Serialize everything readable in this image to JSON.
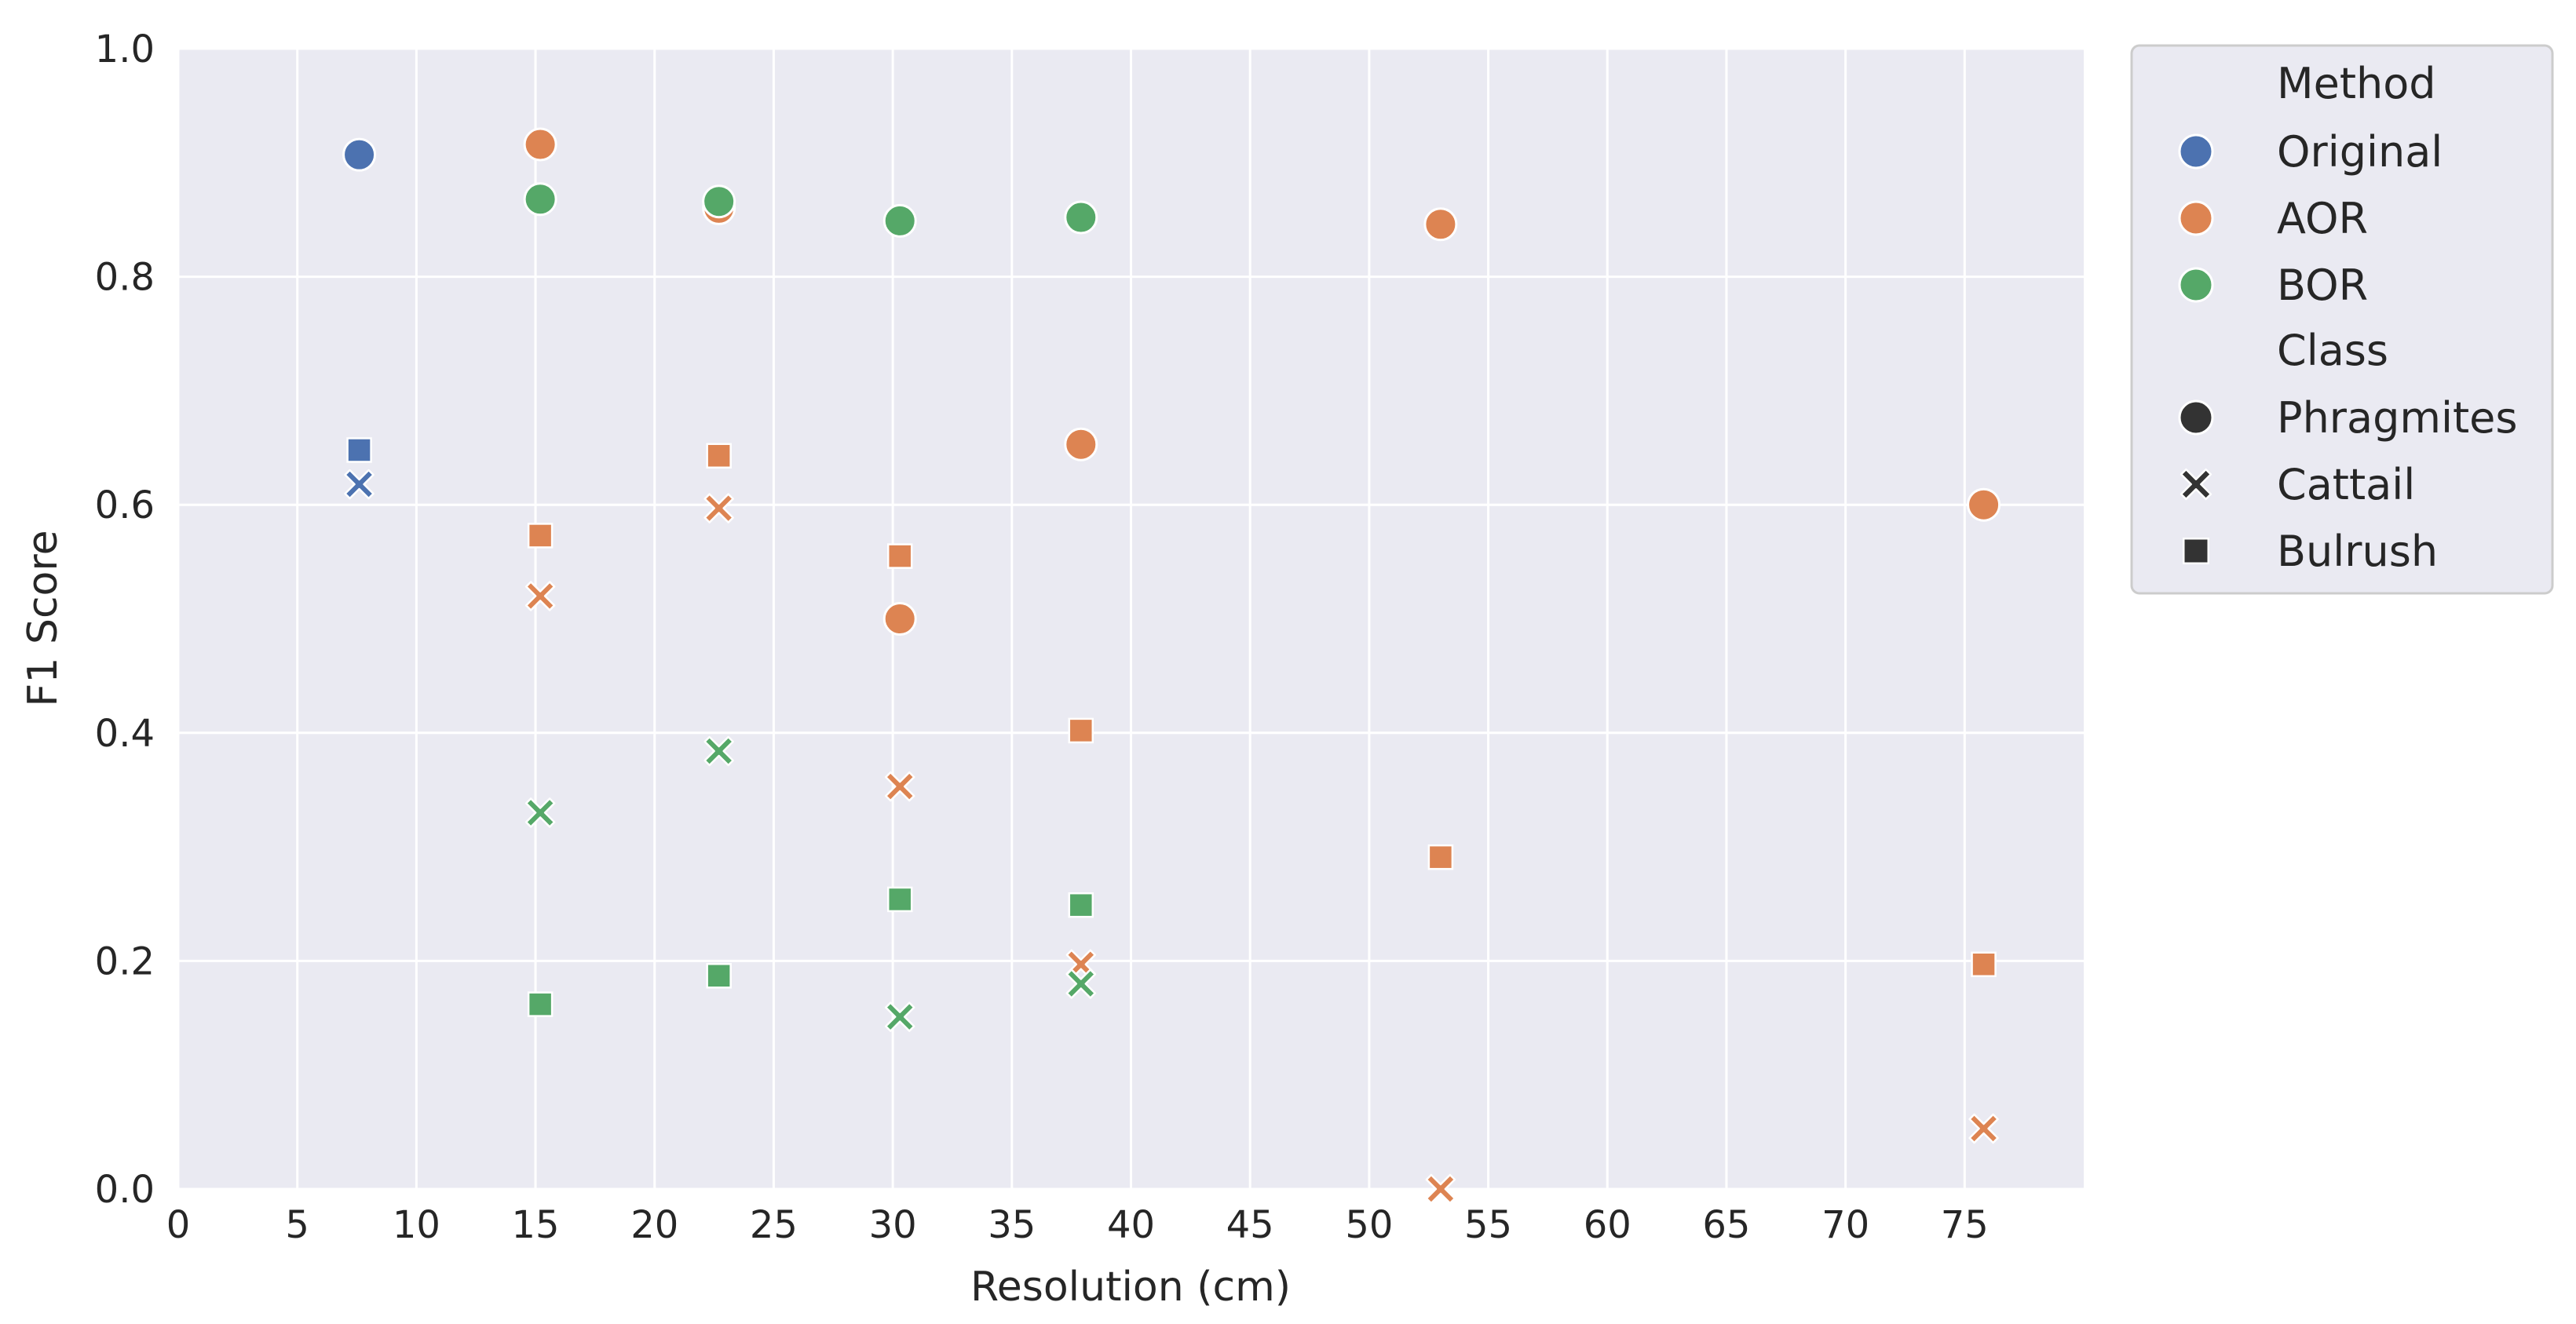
{
  "chart_data": {
    "type": "scatter",
    "xlabel": "Resolution (cm)",
    "ylabel": "F1 Score",
    "xlim": [
      0,
      80
    ],
    "ylim": [
      0.0,
      1.0
    ],
    "x_ticks": [
      0,
      5,
      10,
      15,
      20,
      25,
      30,
      35,
      40,
      45,
      50,
      55,
      60,
      65,
      70,
      75
    ],
    "y_ticks": [
      0.0,
      0.2,
      0.4,
      0.6,
      0.8,
      1.0
    ],
    "grid": true,
    "legend_position": "outside-top-right",
    "background_color": "#eaeaf2",
    "legend": {
      "hue_title": "Method",
      "style_title": "Class",
      "methods": [
        {
          "name": "Original",
          "color": "#4c72b0"
        },
        {
          "name": "AOR",
          "color": "#dd8452"
        },
        {
          "name": "BOR",
          "color": "#55a868"
        }
      ],
      "classes": [
        {
          "name": "Phragmites",
          "marker": "circle"
        },
        {
          "name": "Cattail",
          "marker": "x"
        },
        {
          "name": "Bulrush",
          "marker": "square"
        }
      ]
    },
    "points": [
      {
        "method": "Original",
        "class": "Phragmites",
        "x": 7.6,
        "y": 0.907
      },
      {
        "method": "Original",
        "class": "Bulrush",
        "x": 7.6,
        "y": 0.648
      },
      {
        "method": "Original",
        "class": "Cattail",
        "x": 7.6,
        "y": 0.618
      },
      {
        "method": "AOR",
        "class": "Phragmites",
        "x": 15.2,
        "y": 0.916
      },
      {
        "method": "AOR",
        "class": "Bulrush",
        "x": 15.2,
        "y": 0.573
      },
      {
        "method": "AOR",
        "class": "Cattail",
        "x": 15.2,
        "y": 0.52
      },
      {
        "method": "AOR",
        "class": "Phragmites",
        "x": 22.7,
        "y": 0.86
      },
      {
        "method": "AOR",
        "class": "Bulrush",
        "x": 22.7,
        "y": 0.643
      },
      {
        "method": "AOR",
        "class": "Cattail",
        "x": 22.7,
        "y": 0.597
      },
      {
        "method": "AOR",
        "class": "Bulrush",
        "x": 30.3,
        "y": 0.555
      },
      {
        "method": "AOR",
        "class": "Phragmites",
        "x": 30.3,
        "y": 0.5
      },
      {
        "method": "AOR",
        "class": "Cattail",
        "x": 30.3,
        "y": 0.353
      },
      {
        "method": "AOR",
        "class": "Phragmites",
        "x": 37.9,
        "y": 0.653
      },
      {
        "method": "AOR",
        "class": "Bulrush",
        "x": 37.9,
        "y": 0.402
      },
      {
        "method": "AOR",
        "class": "Cattail",
        "x": 37.9,
        "y": 0.197
      },
      {
        "method": "AOR",
        "class": "Phragmites",
        "x": 53.0,
        "y": 0.846
      },
      {
        "method": "AOR",
        "class": "Bulrush",
        "x": 53.0,
        "y": 0.291
      },
      {
        "method": "AOR",
        "class": "Cattail",
        "x": 53.0,
        "y": 0.0
      },
      {
        "method": "AOR",
        "class": "Phragmites",
        "x": 75.8,
        "y": 0.6
      },
      {
        "method": "AOR",
        "class": "Bulrush",
        "x": 75.8,
        "y": 0.197
      },
      {
        "method": "AOR",
        "class": "Cattail",
        "x": 75.8,
        "y": 0.053
      },
      {
        "method": "BOR",
        "class": "Phragmites",
        "x": 15.2,
        "y": 0.868
      },
      {
        "method": "BOR",
        "class": "Cattail",
        "x": 15.2,
        "y": 0.33
      },
      {
        "method": "BOR",
        "class": "Bulrush",
        "x": 15.2,
        "y": 0.162
      },
      {
        "method": "BOR",
        "class": "Phragmites",
        "x": 22.7,
        "y": 0.866
      },
      {
        "method": "BOR",
        "class": "Cattail",
        "x": 22.7,
        "y": 0.384
      },
      {
        "method": "BOR",
        "class": "Bulrush",
        "x": 22.7,
        "y": 0.187
      },
      {
        "method": "BOR",
        "class": "Phragmites",
        "x": 30.3,
        "y": 0.849
      },
      {
        "method": "BOR",
        "class": "Bulrush",
        "x": 30.3,
        "y": 0.254
      },
      {
        "method": "BOR",
        "class": "Cattail",
        "x": 30.3,
        "y": 0.151
      },
      {
        "method": "BOR",
        "class": "Phragmites",
        "x": 37.9,
        "y": 0.852
      },
      {
        "method": "BOR",
        "class": "Bulrush",
        "x": 37.9,
        "y": 0.249
      },
      {
        "method": "BOR",
        "class": "Cattail",
        "x": 37.9,
        "y": 0.18
      }
    ]
  }
}
